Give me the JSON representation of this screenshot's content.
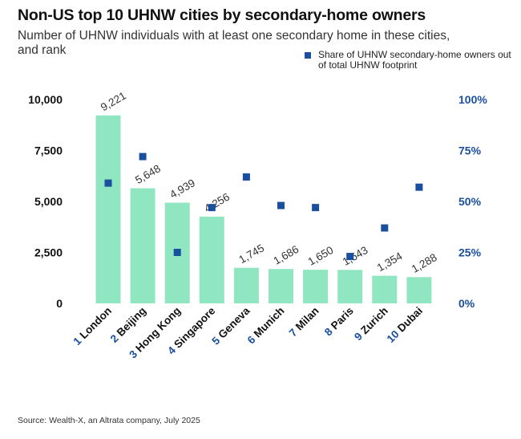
{
  "header": {
    "title": "Non-US top 10 UHNW cities by secondary-home owners",
    "subtitle": "Number of UHNW individuals with at least one secondary home in these cities, and rank"
  },
  "legend": {
    "share_label": "Share of UHNW secondary-home owners out of total UHNW footprint"
  },
  "footer": {
    "source": "Source: Wealth-X, an Altrata company, July 2025"
  },
  "colors": {
    "bar": "#8fe6c1",
    "marker": "#1a4fa0",
    "right_axis": "#1a4fa0"
  },
  "chart_data": {
    "type": "bar",
    "title": "Non-US top 10 UHNW cities by secondary-home owners",
    "subtitle": "Number of UHNW individuals with at least one secondary home in these cities, and rank",
    "categories": [
      "London",
      "Beijing",
      "Hong Kong",
      "Singapore",
      "Geneva",
      "Munich",
      "Milan",
      "Paris",
      "Zurich",
      "Dubai"
    ],
    "ranks": [
      "1",
      "2",
      "3",
      "4",
      "5",
      "6",
      "7",
      "8",
      "9",
      "10"
    ],
    "series": [
      {
        "type": "bar",
        "values": [
          9221,
          5648,
          4939,
          4256,
          1745,
          1686,
          1650,
          1643,
          1354,
          1288
        ],
        "value_labels": [
          "9,221",
          "5,648",
          "4,939",
          "4,256",
          "1,745",
          "1,686",
          "1,650",
          "1,643",
          "1,354",
          "1,288"
        ],
        "axis": "left"
      },
      {
        "name": "Share of UHNW secondary-home owners out of total UHNW footprint",
        "type": "scatter",
        "values": [
          59,
          72,
          25,
          47,
          62,
          48,
          47,
          23,
          37,
          57
        ],
        "axis": "right"
      }
    ],
    "y_left": {
      "min": 0,
      "max": 10000,
      "ticks": [
        0,
        2500,
        5000,
        7500,
        10000
      ],
      "tick_labels": [
        "0",
        "2,500",
        "5,000",
        "7,500",
        "10,000"
      ]
    },
    "y_right": {
      "min": 0,
      "max": 100,
      "ticks": [
        0,
        25,
        50,
        75,
        100
      ],
      "tick_labels": [
        "0%",
        "25%",
        "50%",
        "75%",
        "100%"
      ]
    },
    "grid": false,
    "legend_position": "top-right"
  }
}
